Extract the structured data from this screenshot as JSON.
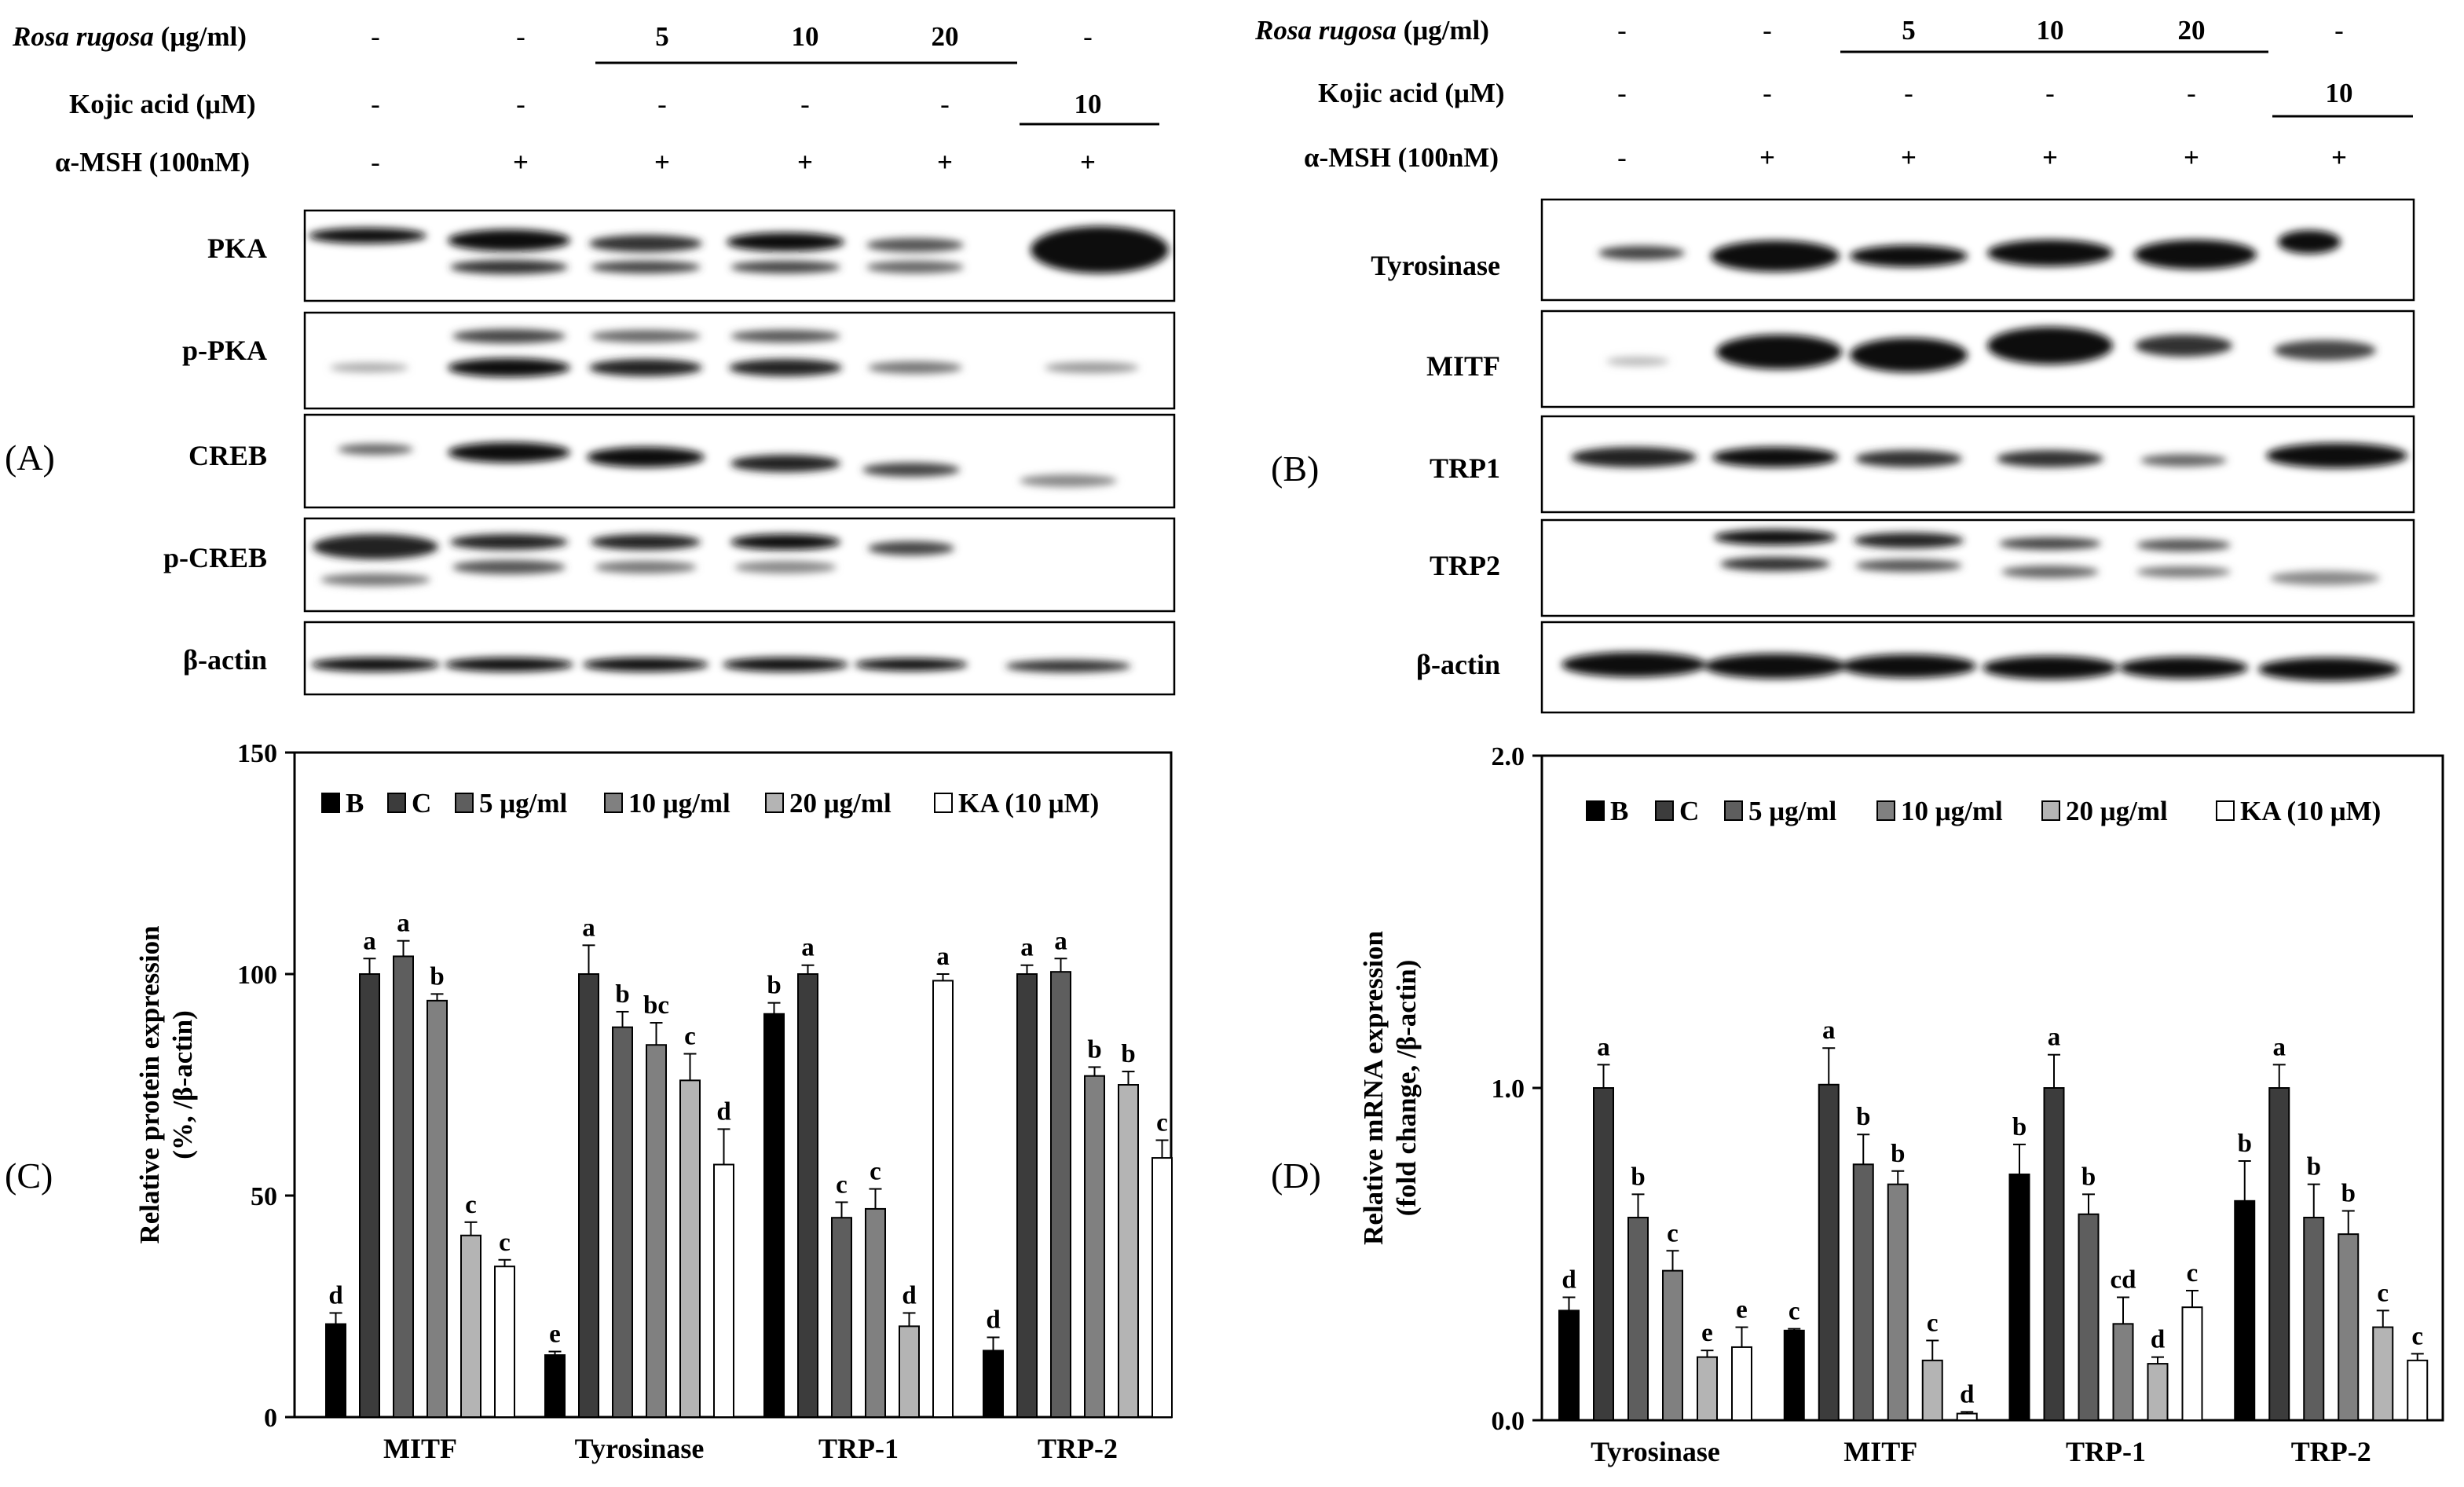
{
  "panel_labels": {
    "a": "(A)",
    "b": "(B)",
    "c": "(C)",
    "d": "(D)"
  },
  "treatment_table": {
    "rows": [
      {
        "label_italic": "Rosa rugosa",
        "label_suffix": " (μg/ml)",
        "values": [
          "-",
          "-",
          "5",
          "10",
          "20",
          "-"
        ]
      },
      {
        "label": "Kojic acid (μM)",
        "values": [
          "-",
          "-",
          "-",
          "-",
          "-",
          "10"
        ]
      },
      {
        "label": "α-MSH (100nM)",
        "values": [
          "-",
          "+",
          "+",
          "+",
          "+",
          "+"
        ]
      }
    ]
  },
  "blot_a": {
    "labels": [
      "PKA",
      "p-PKA",
      "CREB",
      "p-CREB",
      "β-actin"
    ]
  },
  "blot_b": {
    "labels": [
      "Tyrosinase",
      "MITF",
      "TRP1",
      "TRP2",
      "β-actin"
    ]
  },
  "colors": {
    "series": [
      "#000000",
      "#3c3c3c",
      "#5e5e5e",
      "#808080",
      "#b4b4b4",
      "#ffffff"
    ]
  },
  "chart_data": [
    {
      "type": "bar",
      "panel": "(C)",
      "ylabel_line1": "Relative protein expression",
      "ylabel_line2": "(%, /β-actin)",
      "ylim": [
        0,
        150
      ],
      "yticks": [
        "0",
        "50",
        "100",
        "150"
      ],
      "categories": [
        "MITF",
        "Tyrosinase",
        "TRP-1",
        "TRP-2"
      ],
      "legend": [
        "B",
        "C",
        "5 μg/ml",
        "10 μg/ml",
        "20 μg/ml",
        "KA (10 μM)"
      ],
      "series": [
        {
          "name": "B",
          "values": [
            21,
            14,
            91,
            15
          ],
          "errors": [
            2.5,
            0.8,
            2.5,
            3
          ],
          "letters": [
            "d",
            "e",
            "b",
            "d"
          ]
        },
        {
          "name": "C",
          "values": [
            100,
            100,
            100,
            100
          ],
          "errors": [
            3.5,
            6.5,
            2,
            2
          ],
          "letters": [
            "a",
            "a",
            "a",
            "a"
          ]
        },
        {
          "name": "5 μg/ml",
          "values": [
            104,
            88,
            45,
            100.5
          ],
          "errors": [
            3.5,
            3.5,
            3.5,
            3
          ],
          "letters": [
            "a",
            "b",
            "c",
            "a"
          ]
        },
        {
          "name": "10 μg/ml",
          "values": [
            94,
            84,
            47,
            77
          ],
          "errors": [
            1.5,
            5,
            4.5,
            2
          ],
          "letters": [
            "b",
            "bc",
            "c",
            "b"
          ]
        },
        {
          "name": "20 μg/ml",
          "values": [
            41,
            76,
            20.5,
            75
          ],
          "errors": [
            3,
            6,
            3,
            3
          ],
          "letters": [
            "c",
            "c",
            "d",
            "b"
          ]
        },
        {
          "name": "KA (10 μM)",
          "values": [
            34,
            57,
            98.5,
            58.5
          ],
          "errors": [
            1.5,
            8,
            1.5,
            4
          ],
          "letters": [
            "c",
            "d",
            "a",
            "c"
          ]
        }
      ]
    },
    {
      "type": "bar",
      "panel": "(D)",
      "ylabel_line1": "Relative mRNA expression",
      "ylabel_line2": "(fold change, /β-actin)",
      "ylim": [
        0,
        2.0
      ],
      "yticks": [
        "0.0",
        "1.0",
        "2.0"
      ],
      "categories": [
        "Tyrosinase",
        "MITF",
        "TRP-1",
        "TRP-2"
      ],
      "legend": [
        "B",
        "C",
        "5 μg/ml",
        "10 μg/ml",
        "20 μg/ml",
        "KA (10 μM)"
      ],
      "series": [
        {
          "name": "B",
          "values": [
            0.33,
            0.27,
            0.74,
            0.66
          ],
          "errors": [
            0.04,
            0.005,
            0.09,
            0.12
          ],
          "letters": [
            "d",
            "c",
            "b",
            "b"
          ]
        },
        {
          "name": "C",
          "values": [
            1.0,
            1.01,
            1.0,
            1.0
          ],
          "errors": [
            0.07,
            0.11,
            0.1,
            0.07
          ],
          "letters": [
            "a",
            "a",
            "a",
            "a"
          ]
        },
        {
          "name": "5 μg/ml",
          "values": [
            0.61,
            0.77,
            0.62,
            0.61
          ],
          "errors": [
            0.07,
            0.09,
            0.06,
            0.1
          ],
          "letters": [
            "b",
            "b",
            "b",
            "b"
          ]
        },
        {
          "name": "10 μg/ml",
          "values": [
            0.45,
            0.71,
            0.29,
            0.56
          ],
          "errors": [
            0.06,
            0.04,
            0.08,
            0.07
          ],
          "letters": [
            "c",
            "b",
            "cd",
            "b"
          ]
        },
        {
          "name": "20 μg/ml",
          "values": [
            0.19,
            0.18,
            0.17,
            0.28
          ],
          "errors": [
            0.02,
            0.06,
            0.02,
            0.05
          ],
          "letters": [
            "e",
            "c",
            "d",
            "c"
          ]
        },
        {
          "name": "KA (10 μM)",
          "values": [
            0.22,
            0.02,
            0.34,
            0.18
          ],
          "errors": [
            0.06,
            0.005,
            0.05,
            0.02
          ],
          "letters": [
            "e",
            "d",
            "c",
            "c"
          ]
        }
      ]
    }
  ]
}
